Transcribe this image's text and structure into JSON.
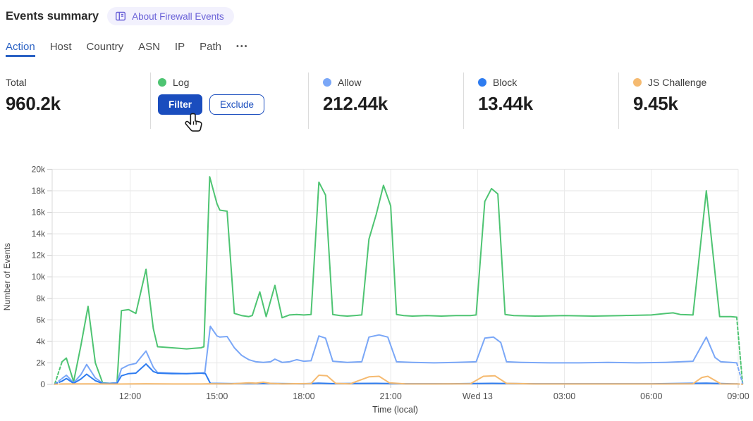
{
  "header": {
    "title": "Events summary",
    "about_label": "About Firewall Events"
  },
  "tabs": {
    "items": [
      {
        "label": "Action",
        "active": true
      },
      {
        "label": "Host",
        "active": false
      },
      {
        "label": "Country",
        "active": false
      },
      {
        "label": "ASN",
        "active": false
      },
      {
        "label": "IP",
        "active": false
      },
      {
        "label": "Path",
        "active": false
      }
    ],
    "overflow_label": "•••"
  },
  "colors": {
    "button_primary": "#1a4dbe",
    "tab_active": "#2b62c4",
    "badge_bg": "#f2f1fd",
    "badge_text": "#6a62d8",
    "log": "#4ec472",
    "allow": "#7aa7f7",
    "block": "#2e7cf0",
    "js_challenge": "#f5ba70"
  },
  "stats": {
    "total": {
      "label": "Total",
      "value": "960.2k"
    },
    "log": {
      "label": "Log",
      "color": "#4ec472",
      "filter_label": "Filter",
      "exclude_label": "Exclude"
    },
    "allow": {
      "label": "Allow",
      "value": "212.44k",
      "color": "#7aa7f7"
    },
    "block": {
      "label": "Block",
      "value": "13.44k",
      "color": "#2e7cf0"
    },
    "js_challenge": {
      "label": "JS Challenge",
      "value": "9.45k",
      "color": "#f5ba70"
    }
  },
  "chart_data": {
    "type": "line",
    "title": "",
    "xlabel": "Time (local)",
    "ylabel": "Number of Events",
    "ylim": [
      0,
      20000
    ],
    "grid": true,
    "legend_position": "stat-cards-above-chart",
    "x_unit_hours_since": "Tue 09:00 local",
    "x_range_hours": [
      0.3,
      24.2
    ],
    "boundary_segments_dashed": true,
    "y_ticks": [
      {
        "v": 0,
        "label": "0"
      },
      {
        "v": 2000,
        "label": "2k"
      },
      {
        "v": 4000,
        "label": "4k"
      },
      {
        "v": 6000,
        "label": "6k"
      },
      {
        "v": 8000,
        "label": "8k"
      },
      {
        "v": 10000,
        "label": "10k"
      },
      {
        "v": 12000,
        "label": "12k"
      },
      {
        "v": 14000,
        "label": "14k"
      },
      {
        "v": 16000,
        "label": "16k"
      },
      {
        "v": 18000,
        "label": "18k"
      },
      {
        "v": 20000,
        "label": "20k"
      }
    ],
    "x_ticks": [
      {
        "t": 3,
        "label": "12:00"
      },
      {
        "t": 6,
        "label": "15:00"
      },
      {
        "t": 9,
        "label": "18:00"
      },
      {
        "t": 12,
        "label": "21:00"
      },
      {
        "t": 15,
        "label": "Wed 13"
      },
      {
        "t": 18,
        "label": "03:00"
      },
      {
        "t": 21,
        "label": "06:00"
      },
      {
        "t": 24,
        "label": "09:00"
      }
    ],
    "series": [
      {
        "name": "Log",
        "color": "#4ec472",
        "points": [
          [
            0.4,
            50
          ],
          [
            0.65,
            2100
          ],
          [
            0.8,
            2450
          ],
          [
            1.05,
            250
          ],
          [
            1.3,
            3600
          ],
          [
            1.55,
            7250
          ],
          [
            1.8,
            2000
          ],
          [
            2.05,
            150
          ],
          [
            2.3,
            100
          ],
          [
            2.55,
            150
          ],
          [
            2.7,
            6850
          ],
          [
            2.95,
            6950
          ],
          [
            3.2,
            6600
          ],
          [
            3.55,
            10700
          ],
          [
            3.8,
            5200
          ],
          [
            3.95,
            3500
          ],
          [
            4.2,
            3450
          ],
          [
            4.45,
            3400
          ],
          [
            4.7,
            3350
          ],
          [
            4.95,
            3300
          ],
          [
            5.2,
            3350
          ],
          [
            5.45,
            3400
          ],
          [
            5.55,
            3500
          ],
          [
            5.75,
            19300
          ],
          [
            6.0,
            16800
          ],
          [
            6.1,
            16200
          ],
          [
            6.35,
            16100
          ],
          [
            6.6,
            6600
          ],
          [
            6.85,
            6400
          ],
          [
            7.1,
            6300
          ],
          [
            7.22,
            6400
          ],
          [
            7.48,
            8600
          ],
          [
            7.7,
            6300
          ],
          [
            8.0,
            9200
          ],
          [
            8.25,
            6200
          ],
          [
            8.5,
            6450
          ],
          [
            8.75,
            6500
          ],
          [
            9.0,
            6450
          ],
          [
            9.25,
            6500
          ],
          [
            9.52,
            18800
          ],
          [
            9.75,
            17600
          ],
          [
            10.0,
            6500
          ],
          [
            10.25,
            6400
          ],
          [
            10.5,
            6350
          ],
          [
            10.75,
            6400
          ],
          [
            11.0,
            6450
          ],
          [
            11.25,
            13500
          ],
          [
            11.5,
            15800
          ],
          [
            11.75,
            18500
          ],
          [
            12.0,
            16600
          ],
          [
            12.2,
            6500
          ],
          [
            12.45,
            6400
          ],
          [
            12.75,
            6350
          ],
          [
            13.25,
            6400
          ],
          [
            13.75,
            6350
          ],
          [
            14.25,
            6400
          ],
          [
            14.75,
            6400
          ],
          [
            14.95,
            6450
          ],
          [
            15.25,
            17000
          ],
          [
            15.48,
            18200
          ],
          [
            15.7,
            17700
          ],
          [
            15.95,
            6500
          ],
          [
            16.25,
            6400
          ],
          [
            17.0,
            6350
          ],
          [
            18.0,
            6400
          ],
          [
            19.0,
            6350
          ],
          [
            20.0,
            6400
          ],
          [
            21.0,
            6450
          ],
          [
            21.5,
            6600
          ],
          [
            21.75,
            6650
          ],
          [
            22.0,
            6500
          ],
          [
            22.44,
            6450
          ],
          [
            22.9,
            18000
          ],
          [
            23.36,
            6300
          ],
          [
            23.75,
            6300
          ],
          [
            23.95,
            6250
          ],
          [
            24.15,
            100
          ]
        ]
      },
      {
        "name": "Allow",
        "color": "#7aa7f7",
        "points": [
          [
            0.4,
            30
          ],
          [
            0.65,
            550
          ],
          [
            0.8,
            850
          ],
          [
            1.05,
            150
          ],
          [
            1.3,
            900
          ],
          [
            1.5,
            1850
          ],
          [
            1.8,
            600
          ],
          [
            2.05,
            120
          ],
          [
            2.3,
            100
          ],
          [
            2.55,
            150
          ],
          [
            2.7,
            1450
          ],
          [
            2.95,
            1800
          ],
          [
            3.2,
            1950
          ],
          [
            3.55,
            3100
          ],
          [
            3.8,
            1600
          ],
          [
            3.95,
            1100
          ],
          [
            4.45,
            1050
          ],
          [
            4.95,
            1000
          ],
          [
            5.45,
            1050
          ],
          [
            5.58,
            1100
          ],
          [
            5.77,
            5400
          ],
          [
            6.0,
            4500
          ],
          [
            6.1,
            4400
          ],
          [
            6.35,
            4450
          ],
          [
            6.6,
            3400
          ],
          [
            6.85,
            2700
          ],
          [
            7.1,
            2300
          ],
          [
            7.35,
            2100
          ],
          [
            7.6,
            2050
          ],
          [
            7.85,
            2100
          ],
          [
            8.0,
            2350
          ],
          [
            8.25,
            2050
          ],
          [
            8.5,
            2100
          ],
          [
            8.75,
            2300
          ],
          [
            9.0,
            2150
          ],
          [
            9.25,
            2200
          ],
          [
            9.52,
            4500
          ],
          [
            9.75,
            4300
          ],
          [
            10.0,
            2150
          ],
          [
            10.5,
            2050
          ],
          [
            11.0,
            2100
          ],
          [
            11.25,
            4400
          ],
          [
            11.6,
            4600
          ],
          [
            11.9,
            4400
          ],
          [
            12.2,
            2100
          ],
          [
            12.75,
            2050
          ],
          [
            13.5,
            2000
          ],
          [
            14.25,
            2050
          ],
          [
            14.95,
            2100
          ],
          [
            15.25,
            4300
          ],
          [
            15.55,
            4400
          ],
          [
            15.8,
            3900
          ],
          [
            16.0,
            2100
          ],
          [
            16.5,
            2050
          ],
          [
            17.5,
            2000
          ],
          [
            18.5,
            2000
          ],
          [
            19.5,
            2050
          ],
          [
            20.5,
            2000
          ],
          [
            21.5,
            2050
          ],
          [
            22.0,
            2100
          ],
          [
            22.44,
            2150
          ],
          [
            22.9,
            4400
          ],
          [
            23.2,
            2500
          ],
          [
            23.4,
            2100
          ],
          [
            23.75,
            2050
          ],
          [
            23.95,
            2000
          ],
          [
            24.15,
            100
          ]
        ]
      },
      {
        "name": "Block",
        "color": "#2e7cf0",
        "points": [
          [
            0.4,
            20
          ],
          [
            0.65,
            300
          ],
          [
            0.8,
            550
          ],
          [
            1.05,
            100
          ],
          [
            1.3,
            500
          ],
          [
            1.5,
            950
          ],
          [
            1.8,
            350
          ],
          [
            2.05,
            80
          ],
          [
            2.3,
            80
          ],
          [
            2.55,
            100
          ],
          [
            2.7,
            800
          ],
          [
            2.95,
            1000
          ],
          [
            3.2,
            1050
          ],
          [
            3.55,
            1900
          ],
          [
            3.8,
            1200
          ],
          [
            3.95,
            1050
          ],
          [
            4.45,
            1000
          ],
          [
            4.95,
            1000
          ],
          [
            5.45,
            1050
          ],
          [
            5.6,
            1000
          ],
          [
            5.77,
            100
          ],
          [
            6.5,
            70
          ],
          [
            7.5,
            100
          ],
          [
            8.0,
            80
          ],
          [
            9.0,
            60
          ],
          [
            9.5,
            120
          ],
          [
            10.0,
            70
          ],
          [
            11.5,
            100
          ],
          [
            12.5,
            60
          ],
          [
            14.0,
            60
          ],
          [
            15.5,
            100
          ],
          [
            17.0,
            60
          ],
          [
            19.0,
            60
          ],
          [
            21.0,
            60
          ],
          [
            22.9,
            120
          ],
          [
            23.75,
            60
          ],
          [
            23.95,
            50
          ],
          [
            24.15,
            20
          ]
        ]
      },
      {
        "name": "JS Challenge",
        "color": "#f5ba70",
        "points": [
          [
            0.4,
            10
          ],
          [
            0.65,
            40
          ],
          [
            1.5,
            50
          ],
          [
            2.5,
            30
          ],
          [
            3.55,
            60
          ],
          [
            4.5,
            40
          ],
          [
            5.45,
            40
          ],
          [
            5.77,
            60
          ],
          [
            6.5,
            50
          ],
          [
            7.1,
            150
          ],
          [
            7.35,
            120
          ],
          [
            7.6,
            200
          ],
          [
            7.85,
            100
          ],
          [
            8.25,
            50
          ],
          [
            9.25,
            80
          ],
          [
            9.52,
            850
          ],
          [
            9.8,
            800
          ],
          [
            10.1,
            100
          ],
          [
            10.6,
            50
          ],
          [
            11.25,
            700
          ],
          [
            11.6,
            750
          ],
          [
            11.95,
            150
          ],
          [
            12.5,
            50
          ],
          [
            13.5,
            40
          ],
          [
            14.75,
            60
          ],
          [
            15.2,
            750
          ],
          [
            15.6,
            800
          ],
          [
            16.0,
            100
          ],
          [
            17.0,
            40
          ],
          [
            18.5,
            40
          ],
          [
            20.0,
            40
          ],
          [
            21.5,
            40
          ],
          [
            22.44,
            60
          ],
          [
            22.75,
            650
          ],
          [
            22.95,
            750
          ],
          [
            23.4,
            50
          ],
          [
            23.95,
            40
          ],
          [
            24.15,
            20
          ]
        ]
      }
    ]
  }
}
